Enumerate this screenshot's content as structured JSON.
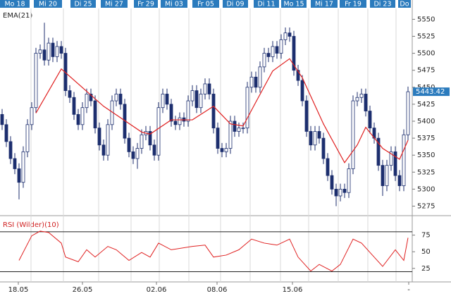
{
  "chart_data": [
    {
      "type": "candlestick",
      "title": "EMA(21)",
      "top_labels": [
        "Mo 18",
        "Mi 20",
        "Di 25",
        "Mi 27",
        "Fr 29",
        "Mi 03",
        "Fr 05",
        "Di 09",
        "Di 11",
        "Mo 15",
        "Mi 17",
        "Fr 19",
        "Di 23",
        "Do"
      ],
      "open": [
        5410,
        5395,
        5370,
        5345,
        5330,
        5310,
        5355,
        5395,
        5420,
        5500,
        5505,
        5490,
        5515,
        5495,
        5510,
        5500,
        5445,
        5435,
        5410,
        5395,
        5420,
        5440,
        5430,
        5390,
        5365,
        5350,
        5395,
        5430,
        5440,
        5425,
        5375,
        5355,
        5345,
        5360,
        5380,
        5385,
        5365,
        5350,
        5420,
        5440,
        5425,
        5400,
        5395,
        5405,
        5400,
        5430,
        5445,
        5420,
        5440,
        5455,
        5440,
        5390,
        5360,
        5355,
        5360,
        5400,
        5385,
        5390,
        5390,
        5450,
        5465,
        5450,
        5480,
        5500,
        5495,
        5510,
        5500,
        5520,
        5530,
        5525,
        5475,
        5460,
        5430,
        5385,
        5365,
        5385,
        5375,
        5345,
        5320,
        5300,
        5290,
        5300,
        5295,
        5330,
        5430,
        5435,
        5440,
        5415,
        5390,
        5375,
        5335,
        5305,
        5335,
        5355,
        5320,
        5305,
        5380
      ],
      "high": [
        5418,
        5403,
        5378,
        5353,
        5338,
        5363,
        5403,
        5428,
        5508,
        5513,
        5545,
        5523,
        5523,
        5518,
        5518,
        5508,
        5453,
        5443,
        5418,
        5428,
        5448,
        5448,
        5438,
        5398,
        5373,
        5403,
        5438,
        5448,
        5448,
        5433,
        5383,
        5363,
        5368,
        5388,
        5393,
        5393,
        5373,
        5428,
        5448,
        5448,
        5433,
        5408,
        5413,
        5413,
        5438,
        5453,
        5453,
        5448,
        5463,
        5463,
        5448,
        5398,
        5368,
        5368,
        5408,
        5408,
        5398,
        5398,
        5458,
        5473,
        5473,
        5488,
        5508,
        5508,
        5518,
        5518,
        5528,
        5538,
        5538,
        5533,
        5483,
        5468,
        5438,
        5393,
        5393,
        5393,
        5383,
        5353,
        5328,
        5308,
        5308,
        5308,
        5338,
        5438,
        5443,
        5448,
        5448,
        5423,
        5398,
        5383,
        5343,
        5343,
        5363,
        5363,
        5328,
        5388,
        5451
      ],
      "low": [
        5387,
        5362,
        5337,
        5322,
        5285,
        5302,
        5347,
        5387,
        5412,
        5492,
        5482,
        5482,
        5487,
        5487,
        5492,
        5437,
        5427,
        5402,
        5387,
        5387,
        5412,
        5422,
        5382,
        5357,
        5342,
        5342,
        5387,
        5422,
        5417,
        5367,
        5347,
        5337,
        5330,
        5352,
        5372,
        5357,
        5342,
        5342,
        5412,
        5417,
        5392,
        5387,
        5387,
        5392,
        5392,
        5422,
        5412,
        5412,
        5432,
        5432,
        5382,
        5352,
        5347,
        5347,
        5352,
        5377,
        5377,
        5382,
        5382,
        5442,
        5442,
        5442,
        5472,
        5487,
        5487,
        5492,
        5492,
        5512,
        5517,
        5467,
        5452,
        5422,
        5377,
        5357,
        5357,
        5367,
        5337,
        5312,
        5292,
        5275,
        5282,
        5287,
        5287,
        5322,
        5422,
        5427,
        5407,
        5382,
        5367,
        5327,
        5290,
        5297,
        5327,
        5312,
        5297,
        5297,
        5372
      ],
      "close": [
        5395,
        5370,
        5345,
        5330,
        5310,
        5355,
        5395,
        5420,
        5500,
        5505,
        5490,
        5515,
        5495,
        5510,
        5500,
        5445,
        5435,
        5410,
        5395,
        5420,
        5440,
        5430,
        5390,
        5365,
        5350,
        5395,
        5430,
        5440,
        5425,
        5375,
        5355,
        5345,
        5360,
        5380,
        5385,
        5365,
        5350,
        5420,
        5440,
        5425,
        5400,
        5395,
        5405,
        5400,
        5430,
        5445,
        5420,
        5440,
        5455,
        5440,
        5390,
        5360,
        5355,
        5360,
        5400,
        5385,
        5390,
        5390,
        5450,
        5465,
        5450,
        5480,
        5500,
        5495,
        5510,
        5500,
        5520,
        5530,
        5525,
        5475,
        5460,
        5430,
        5385,
        5365,
        5385,
        5375,
        5345,
        5320,
        5300,
        5290,
        5300,
        5295,
        5330,
        5430,
        5435,
        5440,
        5415,
        5390,
        5375,
        5335,
        5305,
        5335,
        5355,
        5320,
        5305,
        5380,
        5443.42
      ],
      "up_color": "#ffffff",
      "down_color": "#1c2e6e",
      "ema": {
        "color": "#e02020",
        "x": [
          8,
          14,
          24,
          33,
          35,
          40,
          45,
          50,
          54,
          57,
          60,
          64,
          68,
          71,
          76,
          81,
          84,
          86,
          90,
          94,
          96
        ],
        "values": [
          5412,
          5477,
          5422,
          5384,
          5381,
          5402,
          5402,
          5422,
          5396,
          5393,
          5428,
          5474,
          5492,
          5464,
          5396,
          5339,
          5365,
          5391,
          5360,
          5344,
          5372
        ]
      },
      "ylim": [
        5262,
        5566
      ],
      "yticks": [
        5275,
        5300,
        5325,
        5350,
        5375,
        5400,
        5425,
        5450,
        5475,
        5500,
        5525,
        5550
      ]
    },
    {
      "type": "line",
      "title": "RSI (Wilder)(10)",
      "x_labels": [
        "18.05",
        "26.05",
        "02.06",
        "08.06",
        "15.06",
        "-"
      ],
      "color": "#e02020",
      "x": [
        4,
        7,
        9,
        11,
        14,
        15,
        18,
        20,
        22,
        25,
        27,
        30,
        33,
        35,
        37,
        40,
        45,
        48,
        50,
        53,
        56,
        59,
        62,
        65,
        68,
        70,
        73,
        75,
        78,
        80,
        83,
        85,
        88,
        90,
        93,
        95,
        96
      ],
      "values": [
        37,
        74,
        81,
        79,
        63,
        42,
        35,
        53,
        42,
        58,
        53,
        37,
        49,
        42,
        63,
        53,
        58,
        60,
        42,
        45,
        53,
        69,
        63,
        60,
        69,
        42,
        21,
        31,
        21,
        31,
        69,
        63,
        42,
        28,
        53,
        37,
        71
      ],
      "levels": [
        80,
        20
      ],
      "ylim": [
        10,
        100
      ],
      "yticks": [
        25,
        50,
        75
      ]
    }
  ]
}
